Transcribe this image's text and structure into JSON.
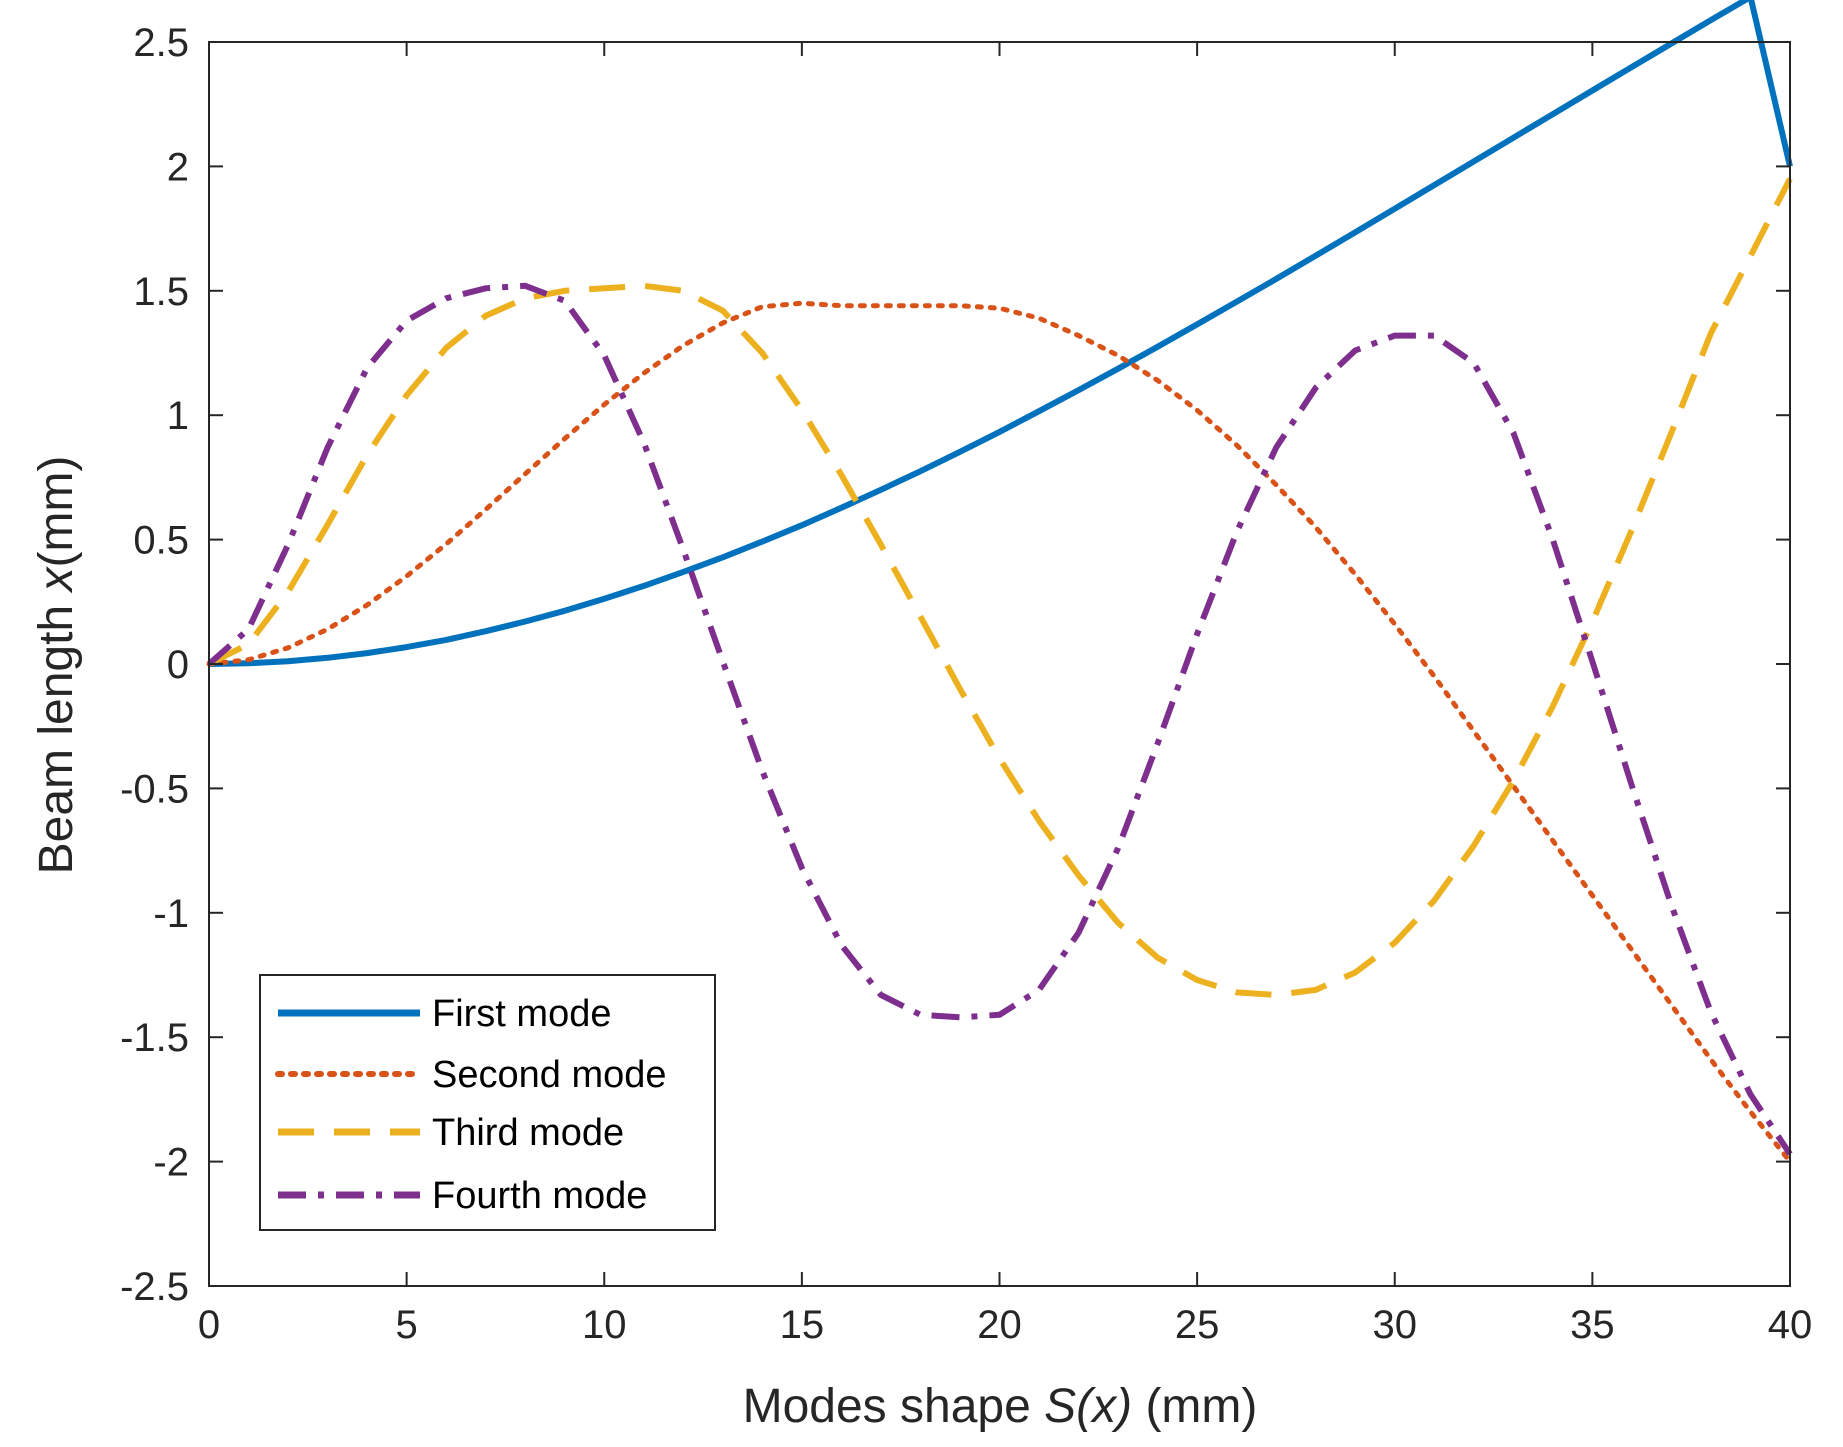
{
  "chart_data": {
    "type": "line",
    "title": "",
    "xlabel": {
      "prefix": "Modes shape ",
      "italic": "S(x)",
      "suffix": " (mm)"
    },
    "ylabel": {
      "prefix": "Beam length ",
      "italic": "x",
      "suffix": "(mm)"
    },
    "xlim": [
      0,
      40
    ],
    "ylim": [
      -2.5,
      2.5
    ],
    "x_ticks": [
      0,
      5,
      10,
      15,
      20,
      25,
      30,
      35,
      40
    ],
    "x_tick_labels": [
      "0",
      "5",
      "10",
      "15",
      "20",
      "25",
      "30",
      "35",
      "40"
    ],
    "y_ticks": [
      2.5,
      2,
      1.5,
      1,
      0.5,
      0,
      -0.5,
      -1,
      -1.5,
      -2,
      -2.5
    ],
    "y_tick_labels": [
      "2.5",
      "2",
      "1.5",
      "1",
      "0.5",
      "0",
      "-0.5",
      "-1",
      "-1.5",
      "-2",
      "-2.5"
    ],
    "grid": false,
    "legend_position": "bottom-left",
    "x": [
      0,
      1,
      2,
      3,
      4,
      5,
      6,
      7,
      8,
      9,
      10,
      11,
      12,
      13,
      14,
      15,
      16,
      17,
      18,
      19,
      20,
      21,
      22,
      23,
      24,
      25,
      26,
      27,
      28,
      29,
      30,
      31,
      32,
      33,
      34,
      35,
      36,
      37,
      38,
      39,
      40
    ],
    "series": [
      {
        "name": "First mode",
        "color": "#0072BD",
        "style": "solid",
        "values": [
          0,
          0.003,
          0.011,
          0.025,
          0.044,
          0.068,
          0.097,
          0.132,
          0.171,
          0.214,
          0.262,
          0.314,
          0.37,
          0.429,
          0.492,
          0.558,
          0.628,
          0.7,
          0.775,
          0.853,
          0.933,
          1.016,
          1.101,
          1.187,
          1.275,
          1.365,
          1.456,
          1.548,
          1.641,
          1.735,
          1.83,
          1.925,
          2.02,
          2.115,
          2.21,
          2.305,
          2.4,
          2.494,
          2.588,
          2.681,
          2.0
        ]
      },
      {
        "name": "Second mode",
        "color": "#D95319",
        "style": "dotted",
        "values": [
          0,
          0.017,
          0.065,
          0.14,
          0.237,
          0.353,
          0.482,
          0.621,
          0.764,
          0.906,
          1.043,
          1.169,
          1.28,
          1.371,
          1.436,
          1.45,
          1.44,
          1.44,
          1.44,
          1.44,
          1.43,
          1.39,
          1.32,
          1.24,
          1.14,
          1.02,
          0.88,
          0.72,
          0.55,
          0.36,
          0.16,
          -0.05,
          -0.27,
          -0.49,
          -0.71,
          -0.93,
          -1.15,
          -1.37,
          -1.59,
          -1.8,
          -2.0
        ]
      },
      {
        "name": "Third mode",
        "color": "#EDB120",
        "style": "dashed",
        "values": [
          0,
          0.08,
          0.29,
          0.56,
          0.84,
          1.08,
          1.27,
          1.4,
          1.47,
          1.5,
          1.51,
          1.52,
          1.5,
          1.42,
          1.25,
          1.02,
          0.76,
          0.48,
          0.19,
          -0.1,
          -0.38,
          -0.63,
          -0.85,
          -1.04,
          -1.18,
          -1.27,
          -1.32,
          -1.33,
          -1.31,
          -1.24,
          -1.12,
          -0.95,
          -0.73,
          -0.47,
          -0.17,
          0.17,
          0.54,
          0.93,
          1.33,
          1.64,
          1.95
        ]
      },
      {
        "name": "Fourth mode",
        "color": "#7E2F8E",
        "style": "dashdot",
        "values": [
          0,
          0.14,
          0.48,
          0.87,
          1.19,
          1.38,
          1.47,
          1.51,
          1.52,
          1.46,
          1.24,
          0.89,
          0.46,
          0.01,
          -0.43,
          -0.82,
          -1.13,
          -1.33,
          -1.41,
          -1.42,
          -1.41,
          -1.31,
          -1.08,
          -0.74,
          -0.32,
          0.12,
          0.53,
          0.87,
          1.11,
          1.26,
          1.32,
          1.32,
          1.21,
          0.93,
          0.5,
          0.01,
          -0.49,
          -0.97,
          -1.4,
          -1.73,
          -1.97
        ]
      }
    ]
  }
}
